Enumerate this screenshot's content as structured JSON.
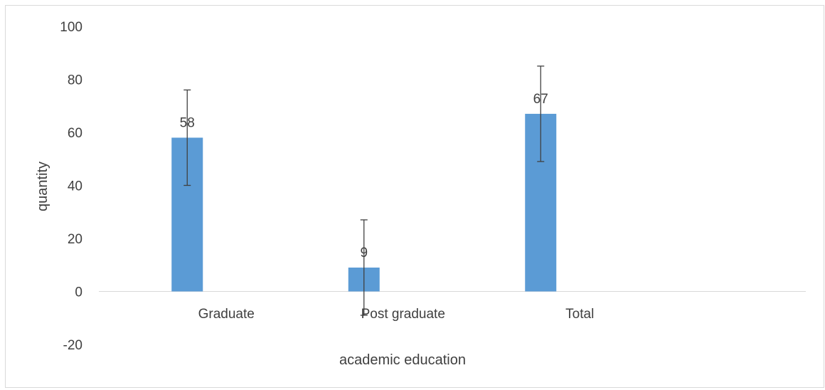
{
  "chart_data": {
    "type": "bar",
    "categories": [
      "Graduate",
      "Post graduate",
      "Total"
    ],
    "values": [
      58,
      9,
      67
    ],
    "error_bar": 18,
    "data_labels": [
      "58",
      "9",
      "67"
    ],
    "xlabel": "academic education",
    "ylabel": "quantity",
    "ylim": [
      -20,
      100
    ],
    "yticks": [
      100,
      80,
      60,
      40,
      20,
      0,
      -20
    ],
    "ytick_labels": [
      "100",
      "80",
      "60",
      "40",
      "20",
      "0",
      "-20"
    ],
    "bar_color": "#5b9bd5",
    "grid": false,
    "legend": "none"
  }
}
